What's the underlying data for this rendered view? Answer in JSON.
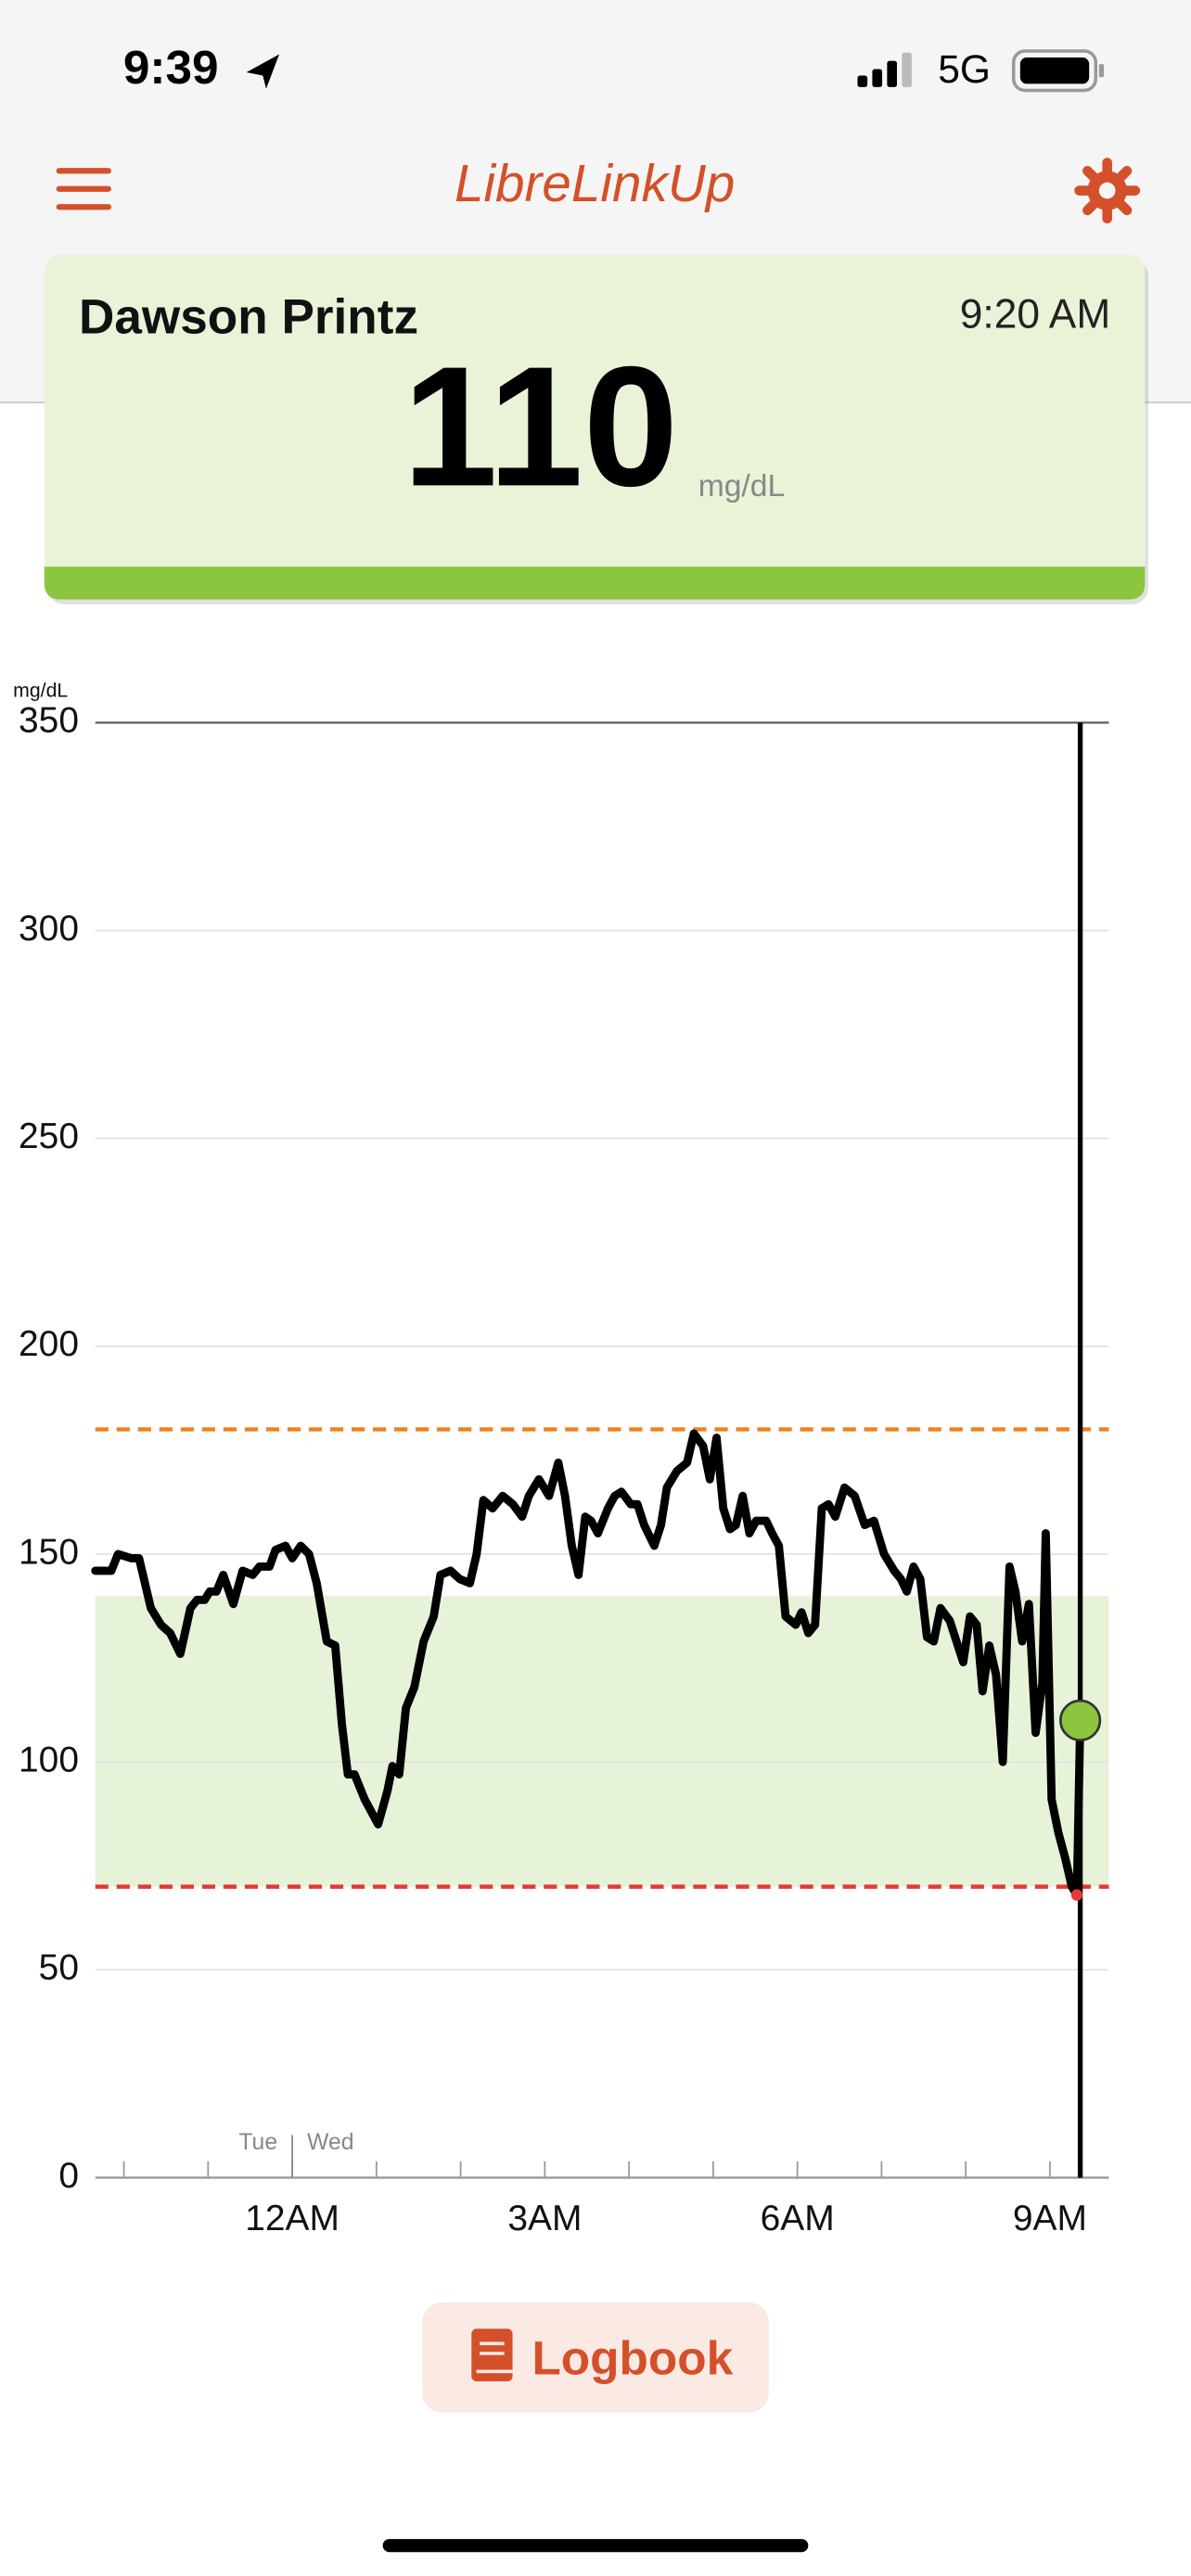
{
  "status_bar": {
    "time": "9:39",
    "network": "5G"
  },
  "header": {
    "title": "LibreLinkUp"
  },
  "patient": {
    "name": "Dawson Printz",
    "time": "9:20 AM",
    "glucose": 110,
    "unit": "mg/dL"
  },
  "chart_data": {
    "type": "line",
    "y_label": "mg/dL",
    "x": [
      -2.34,
      -2.15,
      -2.07,
      -1.91,
      -1.82,
      -1.68,
      -1.56,
      -1.45,
      -1.33,
      -1.21,
      -1.13,
      -1.04,
      -0.98,
      -0.9,
      -0.82,
      -0.7,
      -0.59,
      -0.47,
      -0.39,
      -0.27,
      -0.2,
      -0.08,
      0,
      0.1,
      0.2,
      0.29,
      0.41,
      0.51,
      0.59,
      0.66,
      0.74,
      0.86,
      1.02,
      1.13,
      1.19,
      1.27,
      1.35,
      1.45,
      1.56,
      1.68,
      1.76,
      1.88,
      1.99,
      2.11,
      2.19,
      2.27,
      2.38,
      2.5,
      2.62,
      2.73,
      2.81,
      2.93,
      3.05,
      3.16,
      3.24,
      3.32,
      3.4,
      3.48,
      3.55,
      3.63,
      3.75,
      3.83,
      3.91,
      4.02,
      4.1,
      4.18,
      4.3,
      4.38,
      4.45,
      4.57,
      4.69,
      4.77,
      4.88,
      4.96,
      5.04,
      5.12,
      5.2,
      5.27,
      5.35,
      5.43,
      5.51,
      5.63,
      5.7,
      5.78,
      5.86,
      5.98,
      6.05,
      6.13,
      6.21,
      6.29,
      6.37,
      6.45,
      6.56,
      6.68,
      6.8,
      6.91,
      7.03,
      7.15,
      7.23,
      7.3,
      7.38,
      7.46,
      7.54,
      7.62,
      7.7,
      7.81,
      7.89,
      7.97,
      8.05,
      8.13,
      8.2,
      8.28,
      8.36,
      8.44,
      8.52,
      8.59,
      8.67,
      8.75,
      8.83,
      8.91,
      8.95,
      9.02,
      9.1,
      9.18,
      9.26,
      9.32,
      9.36
    ],
    "values": [
      146,
      146,
      150,
      149,
      149,
      137,
      133,
      131,
      126,
      137,
      139,
      139,
      141,
      141,
      145,
      138,
      146,
      145,
      147,
      147,
      151,
      152,
      149,
      152,
      150,
      143,
      129,
      128,
      109,
      97,
      97,
      91,
      85,
      93,
      99,
      97,
      113,
      118,
      129,
      135,
      145,
      146,
      144,
      143,
      150,
      163,
      161,
      164,
      162,
      159,
      164,
      168,
      164,
      172,
      164,
      152,
      145,
      159,
      158,
      155,
      161,
      164,
      165,
      162,
      162,
      157,
      152,
      157,
      166,
      170,
      172,
      179,
      176,
      168,
      178,
      161,
      156,
      157,
      164,
      155,
      158,
      158,
      155,
      152,
      135,
      133,
      136,
      131,
      133,
      161,
      162,
      159,
      166,
      164,
      157,
      158,
      150,
      146,
      144,
      141,
      147,
      144,
      130,
      129,
      137,
      134,
      129,
      124,
      135,
      133,
      117,
      128,
      121,
      100,
      147,
      141,
      129,
      138,
      107,
      119,
      155,
      91,
      83,
      77,
      70,
      68,
      110
    ],
    "color": "#000000",
    "low_color": "#e53935",
    "marker_color": "#8cc63f",
    "target_range": [
      70,
      140
    ],
    "target_color": "#e6f3d8",
    "high_line": 180,
    "high_color": "#f08020",
    "low_line": 70,
    "xlim": [
      -2.34,
      9.7
    ],
    "xticks": [
      {
        "value": 0,
        "label": "12AM"
      },
      {
        "value": 3,
        "label": "3AM"
      },
      {
        "value": 6,
        "label": "6AM"
      },
      {
        "value": 9,
        "label": "9AM"
      }
    ],
    "xminor": [
      -2,
      -1,
      1,
      2,
      4,
      5,
      7,
      8
    ],
    "day_divider": {
      "value": 0,
      "before": "Tue",
      "after": "Wed"
    },
    "ylim": [
      0,
      350
    ],
    "yticks": [
      0,
      50,
      100,
      150,
      200,
      250,
      300,
      350
    ],
    "grid": true
  },
  "button": {
    "label": "Logbook"
  }
}
